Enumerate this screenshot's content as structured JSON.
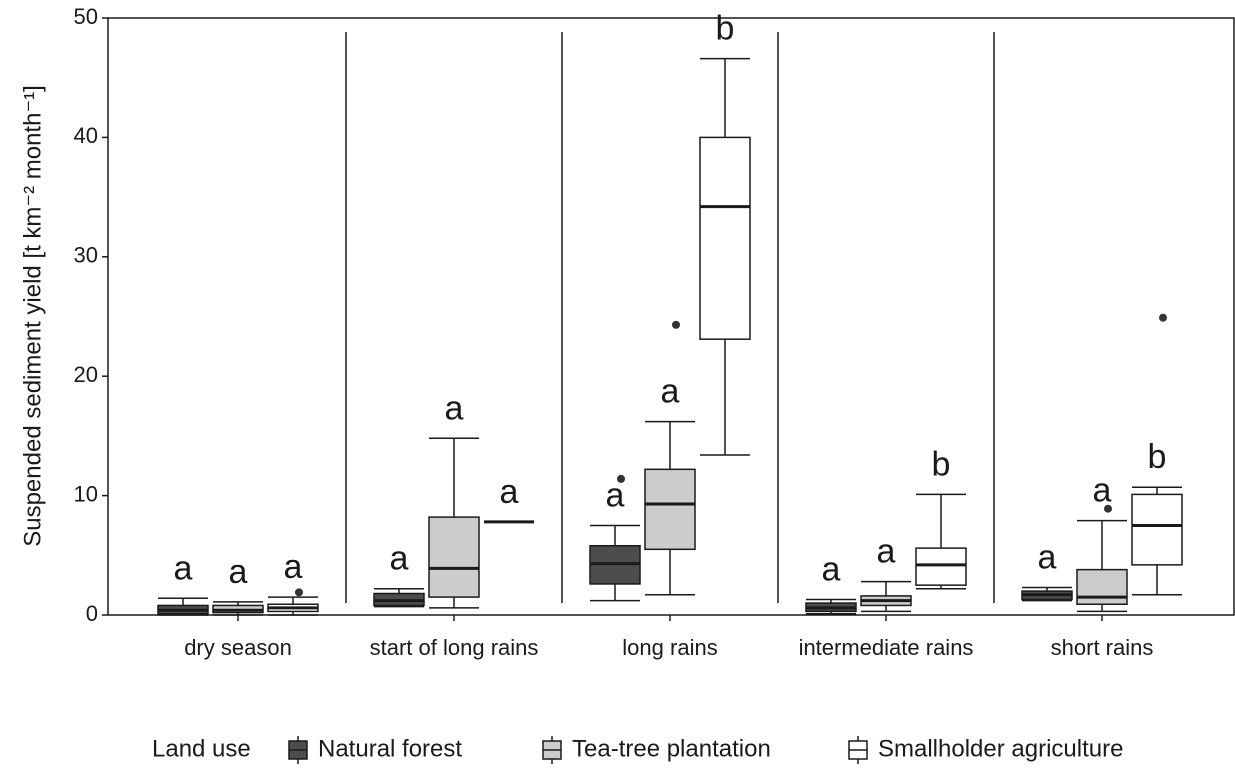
{
  "chart_data": {
    "type": "box",
    "y_label": "Suspended sediment yield [t km⁻² month⁻¹]",
    "legend_title": "Land use",
    "categories": [
      "dry season",
      "start of long rains",
      "long rains",
      "intermediate rains",
      "short rains"
    ],
    "ylim": [
      0,
      50
    ],
    "yticks": [
      0,
      10,
      20,
      30,
      40,
      50
    ],
    "series": [
      {
        "name": "Natural forest",
        "color": "#4d4d4d",
        "boxes": [
          {
            "low": 0,
            "q1": 0.1,
            "median": 0.4,
            "q3": 0.8,
            "high": 1.4,
            "outliers": []
          },
          {
            "low": 0.7,
            "q1": 0.8,
            "median": 1.2,
            "q3": 1.8,
            "high": 2.2,
            "outliers": []
          },
          {
            "low": 1.2,
            "q1": 2.6,
            "median": 4.3,
            "q3": 5.8,
            "high": 7.5,
            "outliers": [
              11.4
            ]
          },
          {
            "low": 0.1,
            "q1": 0.3,
            "median": 0.6,
            "q3": 1.0,
            "high": 1.3,
            "outliers": []
          },
          {
            "low": 1.2,
            "q1": 1.3,
            "median": 1.7,
            "q3": 2.0,
            "high": 2.3,
            "outliers": []
          }
        ],
        "letters": [
          "a",
          "a",
          "a",
          "a",
          "a"
        ]
      },
      {
        "name": "Tea-tree plantation",
        "color": "#cccccc",
        "boxes": [
          {
            "low": 0,
            "q1": 0.2,
            "median": 0.4,
            "q3": 0.8,
            "high": 1.1,
            "outliers": []
          },
          {
            "low": 0.6,
            "q1": 1.5,
            "median": 3.9,
            "q3": 8.2,
            "high": 14.8,
            "outliers": []
          },
          {
            "low": 1.7,
            "q1": 5.5,
            "median": 9.3,
            "q3": 12.2,
            "high": 16.2,
            "outliers": [
              24.3
            ]
          },
          {
            "low": 0.3,
            "q1": 0.8,
            "median": 1.2,
            "q3": 1.6,
            "high": 2.8,
            "outliers": []
          },
          {
            "low": 0.3,
            "q1": 0.9,
            "median": 1.5,
            "q3": 3.8,
            "high": 7.9,
            "outliers": [
              8.9
            ]
          }
        ],
        "letters": [
          "a",
          "a",
          "a",
          "a",
          "a"
        ]
      },
      {
        "name": "Smallholder agriculture",
        "color": "#ffffff",
        "boxes": [
          {
            "low": 0,
            "q1": 0.3,
            "median": 0.6,
            "q3": 0.9,
            "high": 1.5,
            "outliers": [
              1.9
            ]
          },
          {
            "low": 7.8,
            "q1": 7.8,
            "median": 7.8,
            "q3": 7.8,
            "high": 7.8,
            "outliers": []
          },
          {
            "low": 13.4,
            "q1": 23.1,
            "median": 34.2,
            "q3": 40,
            "high": 46.6,
            "outliers": []
          },
          {
            "low": 2.2,
            "q1": 2.5,
            "median": 4.2,
            "q3": 5.6,
            "high": 10.1,
            "outliers": []
          },
          {
            "low": 1.7,
            "q1": 4.2,
            "median": 7.5,
            "q3": 10.1,
            "high": 10.7,
            "outliers": [
              24.9
            ]
          }
        ],
        "letters": [
          "a",
          "a",
          "b",
          "b",
          "b"
        ]
      }
    ]
  }
}
